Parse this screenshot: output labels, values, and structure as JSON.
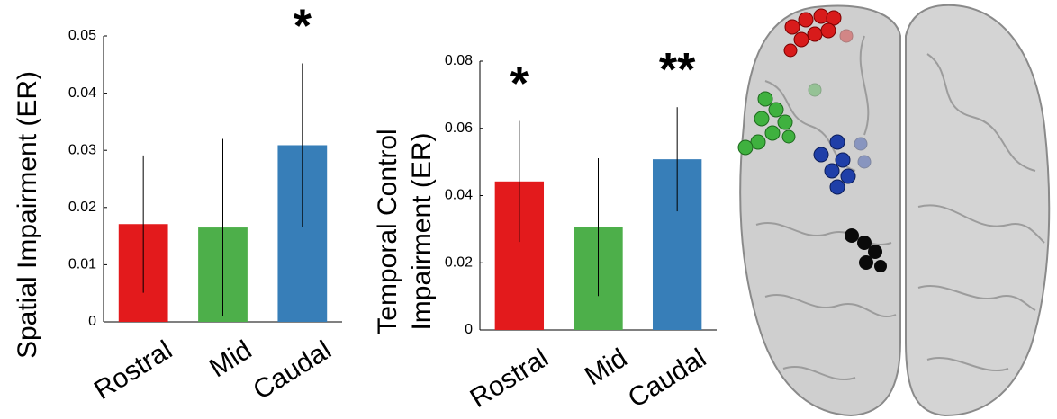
{
  "chart_data": [
    {
      "type": "bar",
      "ylabel": [
        "Spatial Impairment (ER)"
      ],
      "categories": [
        "Rostral",
        "Mid",
        "Caudal"
      ],
      "values": [
        0.0171,
        0.0165,
        0.0309
      ],
      "errors": [
        0.012,
        0.0155,
        0.0143
      ],
      "colors": [
        "#e31a1c",
        "#4daf4a",
        "#377eb8"
      ],
      "ylim": [
        0,
        0.05
      ],
      "yticks": [
        0,
        0.01,
        0.02,
        0.03,
        0.04,
        0.05
      ],
      "annotations": [
        {
          "text": "*",
          "color": "#1f78c8",
          "x": "Caudal"
        }
      ]
    },
    {
      "type": "bar",
      "ylabel": [
        "Temporal Control",
        "Impairment (ER)"
      ],
      "categories": [
        "Rostral",
        "Mid",
        "Caudal"
      ],
      "values": [
        0.0442,
        0.0306,
        0.0508
      ],
      "errors": [
        0.018,
        0.0205,
        0.0155
      ],
      "colors": [
        "#e31a1c",
        "#4daf4a",
        "#377eb8"
      ],
      "ylim": [
        0,
        0.08
      ],
      "yticks": [
        0,
        0.02,
        0.04,
        0.06,
        0.08
      ],
      "annotations": [
        {
          "text": "*",
          "color": "#e31a1c",
          "x": "Rostral"
        },
        {
          "text": "**",
          "color": "#1f78c8",
          "x": "Caudal"
        }
      ]
    }
  ]
}
